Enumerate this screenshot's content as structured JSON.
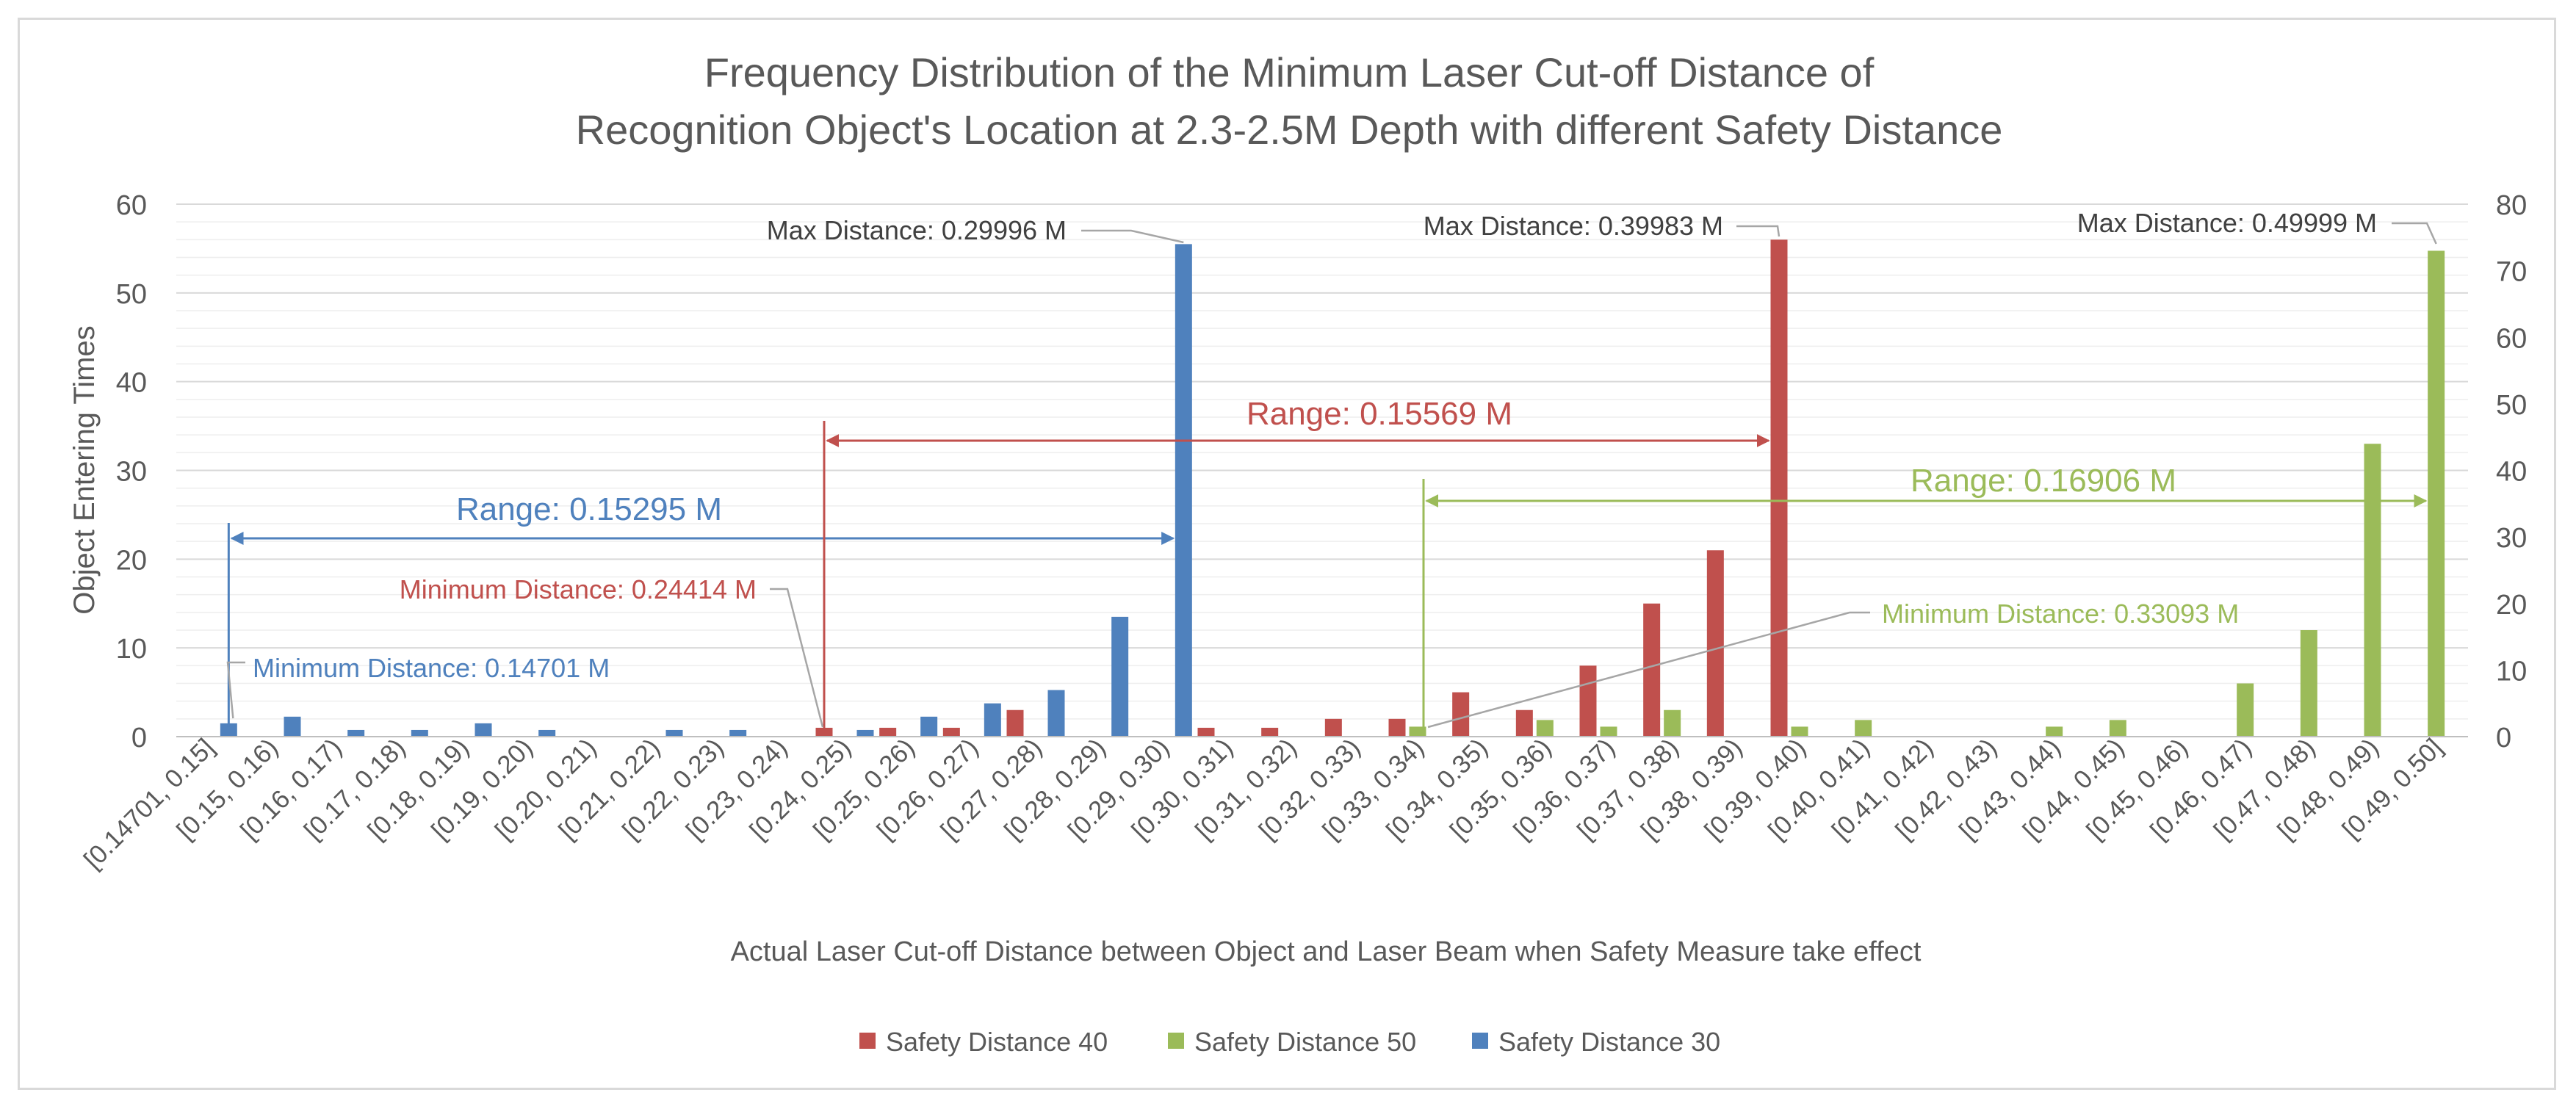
{
  "chart_data": {
    "type": "bar",
    "title_line1": "Frequency Distribution of the Minimum Laser Cut-off Distance of",
    "title_line2": "Recognition Object's Location at 2.3-2.5M Depth with different Safety Distance",
    "xlabel": "Actual Laser Cut-off Distance between Object and Laser Beam when Safety Measure take effect",
    "ylabel": "Object Entering Times",
    "ylim_left": [
      0,
      60
    ],
    "ylim_right": [
      0,
      80
    ],
    "yticks_left": [
      "0",
      "10",
      "20",
      "30",
      "40",
      "50",
      "60"
    ],
    "yticks_right": [
      "0",
      "10",
      "20",
      "30",
      "40",
      "50",
      "60",
      "70",
      "80"
    ],
    "categories": [
      "[0.14701, 0.15]",
      "[0.15, 0.16)",
      "[0.16, 0.17)",
      "[0.17, 0.18)",
      "[0.18, 0.19)",
      "[0.19, 0.20)",
      "[0.20, 0.21)",
      "[0.21, 0.22)",
      "[0.22, 0.23)",
      "[0.23, 0.24)",
      "[0.24, 0.25)",
      "[0.25, 0.26)",
      "[0.26, 0.27)",
      "[0.27, 0.28)",
      "[0.28, 0.29)",
      "[0.29, 0.30)",
      "[0.30, 0.31)",
      "[0.31, 0.32)",
      "[0.32, 0.33)",
      "[0.33, 0.34)",
      "[0.34, 0.35)",
      "[0.35, 0.36)",
      "[0.36, 0.37)",
      "[0.37, 0.38)",
      "[0.38, 0.39)",
      "[0.39, 0.40)",
      "[0.40, 0.41)",
      "[0.41, 0.42)",
      "[0.42, 0.43)",
      "[0.43, 0.44)",
      "[0.44, 0.45)",
      "[0.45, 0.46)",
      "[0.46, 0.47)",
      "[0.47, 0.48)",
      "[0.48, 0.49)",
      "[0.49, 0.50]"
    ],
    "series": [
      {
        "name": "Safety Distance 40",
        "color": "#c0504d",
        "axis": "left",
        "values": [
          0,
          0,
          0,
          0,
          0,
          0,
          0,
          0,
          0,
          0,
          1,
          1,
          1,
          3,
          0,
          0,
          1,
          1,
          2,
          2,
          5,
          3,
          8,
          15,
          21,
          56,
          0,
          0,
          0,
          0,
          0,
          0,
          0,
          0,
          0,
          0
        ]
      },
      {
        "name": "Safety Distance 50",
        "color": "#9bbb59",
        "axis": "right",
        "values": [
          0,
          0,
          0,
          0,
          0,
          0,
          0,
          0,
          0,
          0,
          0,
          0,
          0,
          0,
          0,
          0,
          0,
          0,
          0,
          1.5,
          0,
          2.5,
          1.5,
          4,
          0,
          1.5,
          2.5,
          0,
          0,
          1.5,
          2.5,
          0,
          8,
          16,
          44,
          73
        ]
      },
      {
        "name": "Safety Distance 30",
        "color": "#4f81bd",
        "axis": "right",
        "values": [
          2,
          3,
          1,
          1,
          2,
          1,
          0,
          1,
          1,
          0,
          1,
          3,
          5,
          7,
          18,
          74,
          0,
          0,
          0,
          0,
          0,
          0,
          0,
          0,
          0,
          0,
          0,
          0,
          0,
          0,
          0,
          0,
          0,
          0,
          0,
          0
        ]
      }
    ],
    "legend_order": [
      "Safety Distance 40",
      "Safety Distance 50",
      "Safety Distance 30"
    ],
    "annotations": {
      "blue_max": "Max Distance: 0.29996 M",
      "red_max": "Max Distance: 0.39983 M",
      "green_max": "Max Distance: 0.49999 M",
      "blue_range": "Range: 0.15295 M",
      "red_range": "Range: 0.15569 M",
      "green_range": "Range: 0.16906 M",
      "red_min": "Minimum Distance: 0.24414 M",
      "blue_min": "Minimum Distance: 0.14701 M",
      "green_min": "Minimum Distance: 0.33093 M"
    }
  }
}
